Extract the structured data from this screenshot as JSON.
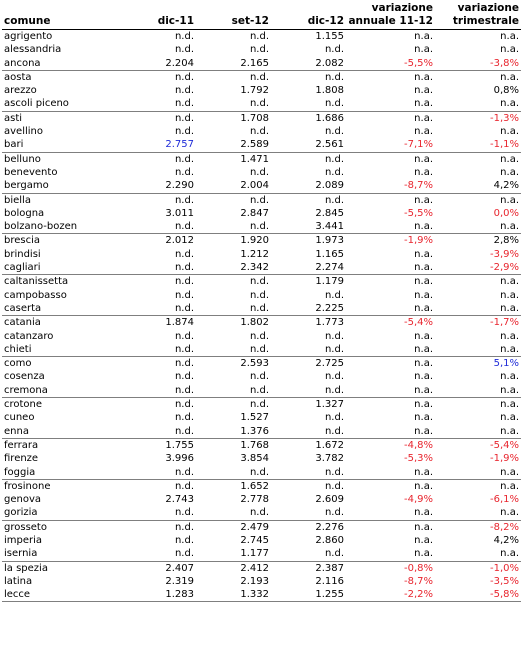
{
  "headers": {
    "comune": "comune",
    "dic11": "dic-11",
    "set12": "set-12",
    "dic12": "dic-12",
    "var_annuale_1": "variazione",
    "var_annuale_2": "annuale 11-12",
    "var_trim_1": "variazione",
    "var_trim_2": "trimestrale"
  },
  "colors": {
    "negative": "#e8252e",
    "highlight": "#1e2bd8",
    "text": "#000000"
  },
  "rows": [
    {
      "comune": "agrigento",
      "dic11": "n.d.",
      "set12": "n.d.",
      "dic12": "1.155",
      "ann": "n.a.",
      "trim": "n.a."
    },
    {
      "comune": "alessandria",
      "dic11": "n.d.",
      "set12": "n.d.",
      "dic12": "n.d.",
      "ann": "n.a.",
      "trim": "n.a."
    },
    {
      "comune": "ancona",
      "dic11": "2.204",
      "set12": "2.165",
      "dic12": "2.082",
      "ann": "-5,5%",
      "trim": "-3,8%",
      "ann_neg": true,
      "trim_neg": true,
      "sep": true
    },
    {
      "comune": "aosta",
      "dic11": "n.d.",
      "set12": "n.d.",
      "dic12": "n.d.",
      "ann": "n.a.",
      "trim": "n.a."
    },
    {
      "comune": "arezzo",
      "dic11": "n.d.",
      "set12": "1.792",
      "dic12": "1.808",
      "ann": "n.a.",
      "trim": "0,8%"
    },
    {
      "comune": "ascoli piceno",
      "dic11": "n.d.",
      "set12": "n.d.",
      "dic12": "n.d.",
      "ann": "n.a.",
      "trim": "n.a.",
      "sep": true
    },
    {
      "comune": "asti",
      "dic11": "n.d.",
      "set12": "1.708",
      "dic12": "1.686",
      "ann": "n.a.",
      "trim": "-1,3%",
      "trim_neg": true
    },
    {
      "comune": "avellino",
      "dic11": "n.d.",
      "set12": "n.d.",
      "dic12": "n.d.",
      "ann": "n.a.",
      "trim": "n.a."
    },
    {
      "comune": "bari",
      "dic11": "2.757",
      "set12": "2.589",
      "dic12": "2.561",
      "ann": "-7,1%",
      "trim": "-1,1%",
      "dic11_blue": true,
      "ann_neg": true,
      "trim_neg": true,
      "sep": true
    },
    {
      "comune": "belluno",
      "dic11": "n.d.",
      "set12": "1.471",
      "dic12": "n.d.",
      "ann": "n.a.",
      "trim": "n.a."
    },
    {
      "comune": "benevento",
      "dic11": "n.d.",
      "set12": "n.d.",
      "dic12": "n.d.",
      "ann": "n.a.",
      "trim": "n.a."
    },
    {
      "comune": "bergamo",
      "dic11": "2.290",
      "set12": "2.004",
      "dic12": "2.089",
      "ann": "-8,7%",
      "trim": "4,2%",
      "ann_neg": true,
      "sep": true
    },
    {
      "comune": "biella",
      "dic11": "n.d.",
      "set12": "n.d.",
      "dic12": "n.d.",
      "ann": "n.a.",
      "trim": "n.a."
    },
    {
      "comune": "bologna",
      "dic11": "3.011",
      "set12": "2.847",
      "dic12": "2.845",
      "ann": "-5,5%",
      "trim": "0,0%",
      "ann_neg": true,
      "trim_neg": true
    },
    {
      "comune": "bolzano-bozen",
      "dic11": "n.d.",
      "set12": "n.d.",
      "dic12": "3.441",
      "ann": "n.a.",
      "trim": "n.a.",
      "sep": true
    },
    {
      "comune": "brescia",
      "dic11": "2.012",
      "set12": "1.920",
      "dic12": "1.973",
      "ann": "-1,9%",
      "trim": "2,8%",
      "ann_neg": true
    },
    {
      "comune": "brindisi",
      "dic11": "n.d.",
      "set12": "1.212",
      "dic12": "1.165",
      "ann": "n.a.",
      "trim": "-3,9%",
      "trim_neg": true
    },
    {
      "comune": "cagliari",
      "dic11": "n.d.",
      "set12": "2.342",
      "dic12": "2.274",
      "ann": "n.a.",
      "trim": "-2,9%",
      "trim_neg": true,
      "sep": true
    },
    {
      "comune": "caltanissetta",
      "dic11": "n.d.",
      "set12": "n.d.",
      "dic12": "1.179",
      "ann": "n.a.",
      "trim": "n.a."
    },
    {
      "comune": "campobasso",
      "dic11": "n.d.",
      "set12": "n.d.",
      "dic12": "n.d.",
      "ann": "n.a.",
      "trim": "n.a."
    },
    {
      "comune": "caserta",
      "dic11": "n.d.",
      "set12": "n.d.",
      "dic12": "2.225",
      "ann": "n.a.",
      "trim": "n.a.",
      "sep": true
    },
    {
      "comune": "catania",
      "dic11": "1.874",
      "set12": "1.802",
      "dic12": "1.773",
      "ann": "-5,4%",
      "trim": "-1,7%",
      "ann_neg": true,
      "trim_neg": true
    },
    {
      "comune": "catanzaro",
      "dic11": "n.d.",
      "set12": "n.d.",
      "dic12": "n.d.",
      "ann": "n.a.",
      "trim": "n.a."
    },
    {
      "comune": "chieti",
      "dic11": "n.d.",
      "set12": "n.d.",
      "dic12": "n.d.",
      "ann": "n.a.",
      "trim": "n.a.",
      "sep": true
    },
    {
      "comune": "como",
      "dic11": "n.d.",
      "set12": "2.593",
      "dic12": "2.725",
      "ann": "n.a.",
      "trim": "5,1%",
      "trim_blue": true
    },
    {
      "comune": "cosenza",
      "dic11": "n.d.",
      "set12": "n.d.",
      "dic12": "n.d.",
      "ann": "n.a.",
      "trim": "n.a."
    },
    {
      "comune": "cremona",
      "dic11": "n.d.",
      "set12": "n.d.",
      "dic12": "n.d.",
      "ann": "n.a.",
      "trim": "n.a.",
      "sep": true
    },
    {
      "comune": "crotone",
      "dic11": "n.d.",
      "set12": "n.d.",
      "dic12": "1.327",
      "ann": "n.a.",
      "trim": "n.a."
    },
    {
      "comune": "cuneo",
      "dic11": "n.d.",
      "set12": "1.527",
      "dic12": "n.d.",
      "ann": "n.a.",
      "trim": "n.a."
    },
    {
      "comune": "enna",
      "dic11": "n.d.",
      "set12": "1.376",
      "dic12": "n.d.",
      "ann": "n.a.",
      "trim": "n.a.",
      "sep": true
    },
    {
      "comune": "ferrara",
      "dic11": "1.755",
      "set12": "1.768",
      "dic12": "1.672",
      "ann": "-4,8%",
      "trim": "-5,4%",
      "ann_neg": true,
      "trim_neg": true
    },
    {
      "comune": "firenze",
      "dic11": "3.996",
      "set12": "3.854",
      "dic12": "3.782",
      "ann": "-5,3%",
      "trim": "-1,9%",
      "ann_neg": true,
      "trim_neg": true
    },
    {
      "comune": "foggia",
      "dic11": "n.d.",
      "set12": "n.d.",
      "dic12": "n.d.",
      "ann": "n.a.",
      "trim": "n.a.",
      "sep": true
    },
    {
      "comune": "frosinone",
      "dic11": "n.d.",
      "set12": "1.652",
      "dic12": "n.d.",
      "ann": "n.a.",
      "trim": "n.a."
    },
    {
      "comune": "genova",
      "dic11": "2.743",
      "set12": "2.778",
      "dic12": "2.609",
      "ann": "-4,9%",
      "trim": "-6,1%",
      "ann_neg": true,
      "trim_neg": true
    },
    {
      "comune": "gorizia",
      "dic11": "n.d.",
      "set12": "n.d.",
      "dic12": "n.d.",
      "ann": "n.a.",
      "trim": "n.a.",
      "sep": true
    },
    {
      "comune": "grosseto",
      "dic11": "n.d.",
      "set12": "2.479",
      "dic12": "2.276",
      "ann": "n.a.",
      "trim": "-8,2%",
      "trim_neg": true
    },
    {
      "comune": "imperia",
      "dic11": "n.d.",
      "set12": "2.745",
      "dic12": "2.860",
      "ann": "n.a.",
      "trim": "4,2%"
    },
    {
      "comune": "isernia",
      "dic11": "n.d.",
      "set12": "1.177",
      "dic12": "n.d.",
      "ann": "n.a.",
      "trim": "n.a.",
      "sep": true
    },
    {
      "comune": "la spezia",
      "dic11": "2.407",
      "set12": "2.412",
      "dic12": "2.387",
      "ann": "-0,8%",
      "trim": "-1,0%",
      "ann_neg": true,
      "trim_neg": true
    },
    {
      "comune": "latina",
      "dic11": "2.319",
      "set12": "2.193",
      "dic12": "2.116",
      "ann": "-8,7%",
      "trim": "-3,5%",
      "ann_neg": true,
      "trim_neg": true
    },
    {
      "comune": "lecce",
      "dic11": "1.283",
      "set12": "1.332",
      "dic12": "1.255",
      "ann": "-2,2%",
      "trim": "-5,8%",
      "ann_neg": true,
      "trim_neg": true,
      "sep": true
    }
  ]
}
